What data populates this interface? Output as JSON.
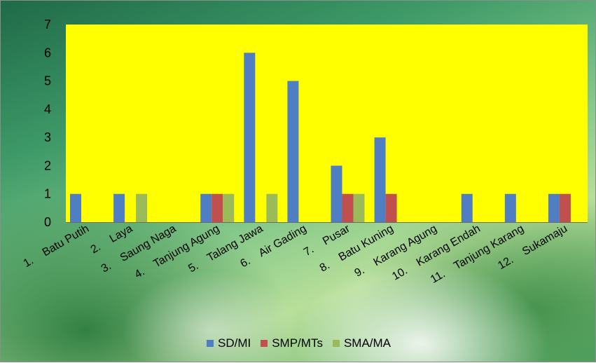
{
  "chart_data": {
    "type": "bar",
    "categories": [
      "1.    Batu Putih",
      "2.    Laya",
      "3.    Saung Naga",
      "4.    Tanjung Agung",
      "5.    Talang Jawa",
      "6.    Air Gading",
      "7.    Pusar",
      "8.    Batu Kuning",
      "9.    Karang Agung",
      "10.    Karang Endah",
      "11.    Tanjung Karang",
      "12.    Sukamaju"
    ],
    "series": [
      {
        "name": "SD/MI",
        "color": "#4f7ec3",
        "values": [
          1,
          1,
          0,
          1,
          6,
          5,
          2,
          3,
          0,
          1,
          1,
          1
        ]
      },
      {
        "name": "SMP/MTs",
        "color": "#c0504d",
        "values": [
          0,
          0,
          0,
          1,
          0,
          0,
          1,
          1,
          0,
          0,
          0,
          1
        ]
      },
      {
        "name": "SMA/MA",
        "color": "#9bbb59",
        "values": [
          0,
          1,
          0,
          1,
          1,
          0,
          1,
          0,
          0,
          0,
          0,
          0
        ]
      }
    ],
    "yticks": [
      0,
      1,
      2,
      3,
      4,
      5,
      6,
      7
    ],
    "ylim": [
      0,
      7
    ],
    "plot_background": "#ffff00",
    "grid": false,
    "legend_position": "bottom",
    "title": "",
    "xlabel": "",
    "ylabel": ""
  }
}
